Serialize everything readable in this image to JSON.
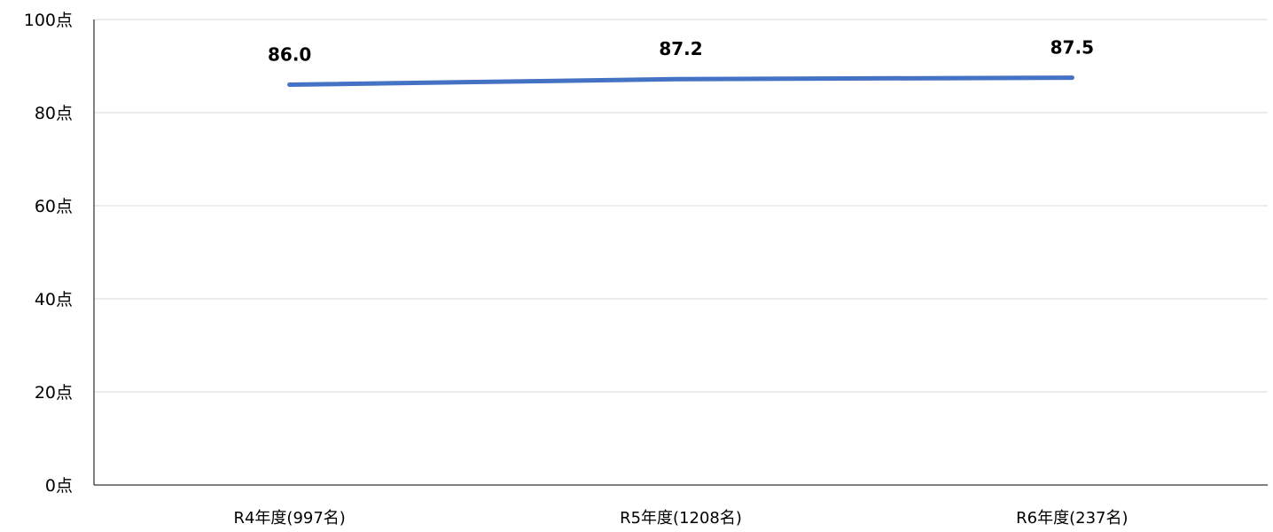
{
  "chart_data": {
    "type": "line",
    "categories": [
      "R4年度(997名)",
      "R5年度(1208名)",
      "R6年度(237名)"
    ],
    "series": [
      {
        "values": [
          86.0,
          87.2,
          87.5
        ],
        "data_labels": [
          "86.0",
          "87.2",
          "87.5"
        ],
        "color": "#4472C4"
      }
    ],
    "y_ticks": [
      "0点",
      "20点",
      "40点",
      "60点",
      "80点",
      "100点"
    ],
    "ylim": [
      0,
      100
    ],
    "grid": true,
    "legend": false,
    "axis_color": "#000000",
    "grid_color": "#d9d9d9"
  }
}
